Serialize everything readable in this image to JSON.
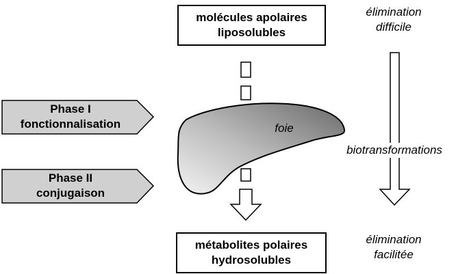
{
  "top_box": {
    "line1": "molécules apolaires",
    "line2": "liposolubles"
  },
  "bottom_box": {
    "line1": "métabolites polaires",
    "line2": "hydrosolubles"
  },
  "elimination_top": {
    "line1": "élimination",
    "line2": "difficile"
  },
  "elimination_bottom": {
    "line1": "élimination",
    "line2": "facilitée"
  },
  "process_label": "biotransformations",
  "organ_label": "foie",
  "phase1": {
    "line1": "Phase I",
    "line2": "fonctionnalisation"
  },
  "phase2": {
    "line1": "Phase II",
    "line2": "conjugaison"
  },
  "colors": {
    "phase_fill": "#d0d0d0",
    "liver_dark": "#6e6e6e",
    "liver_light": "#f2f2f2"
  }
}
